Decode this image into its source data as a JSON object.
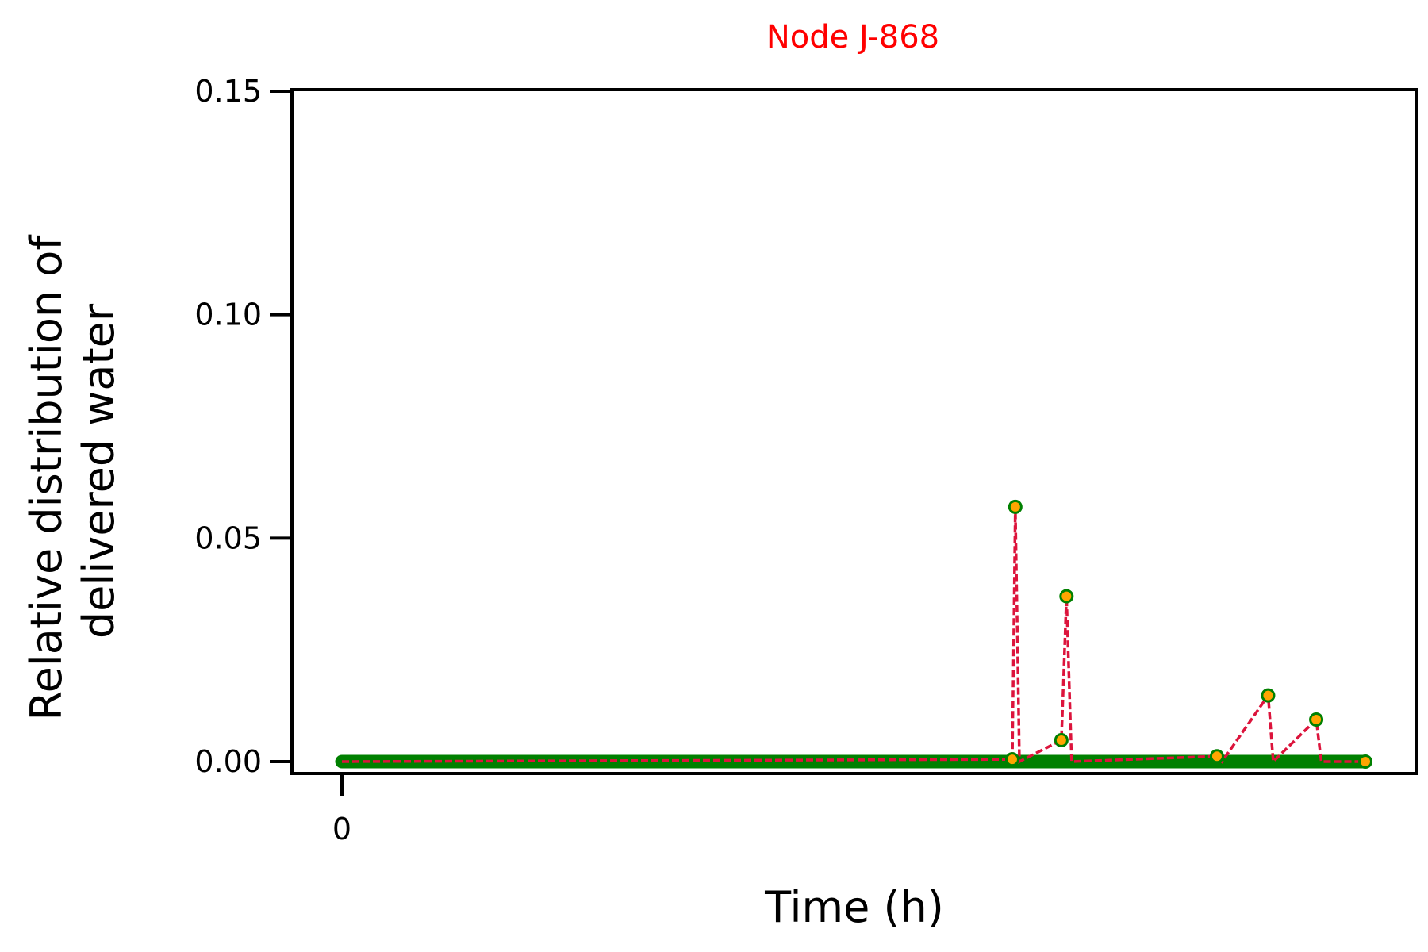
{
  "chart_data": {
    "type": "line",
    "title": "Node J-868",
    "xlabel": "Time (h)",
    "ylabel_lines": [
      "Relative distribution of",
      "delivered water"
    ],
    "x_ticks": [
      "0"
    ],
    "y_ticks": [
      "0.00",
      "0.05",
      "0.10",
      "0.15"
    ],
    "ylim": [
      0,
      0.15
    ],
    "xlim": [
      -5,
      105
    ],
    "grid": false,
    "series": [
      {
        "points": [
          {
            "x": 0,
            "y": 0
          },
          {
            "x": 65.5,
            "y": 0.0005
          },
          {
            "x": 65.8,
            "y": 0.057
          },
          {
            "x": 66.2,
            "y": 0
          },
          {
            "x": 70.3,
            "y": 0.0048
          },
          {
            "x": 70.8,
            "y": 0.037
          },
          {
            "x": 71.3,
            "y": 0
          },
          {
            "x": 85.5,
            "y": 0.0012
          },
          {
            "x": 86.0,
            "y": 0
          },
          {
            "x": 90.5,
            "y": 0.0148
          },
          {
            "x": 91.0,
            "y": 0
          },
          {
            "x": 95.2,
            "y": 0.0094
          },
          {
            "x": 95.7,
            "y": 0
          },
          {
            "x": 100,
            "y": 0
          }
        ],
        "baseline_x_range": [
          0,
          100
        ],
        "baseline_y": 0
      }
    ],
    "colors": {
      "title": "#ff0000",
      "line": "#dc143c",
      "marker_fill": "#ffa500",
      "marker_edge": "#008000",
      "baseline": "#008000",
      "axis": "#000000"
    }
  }
}
